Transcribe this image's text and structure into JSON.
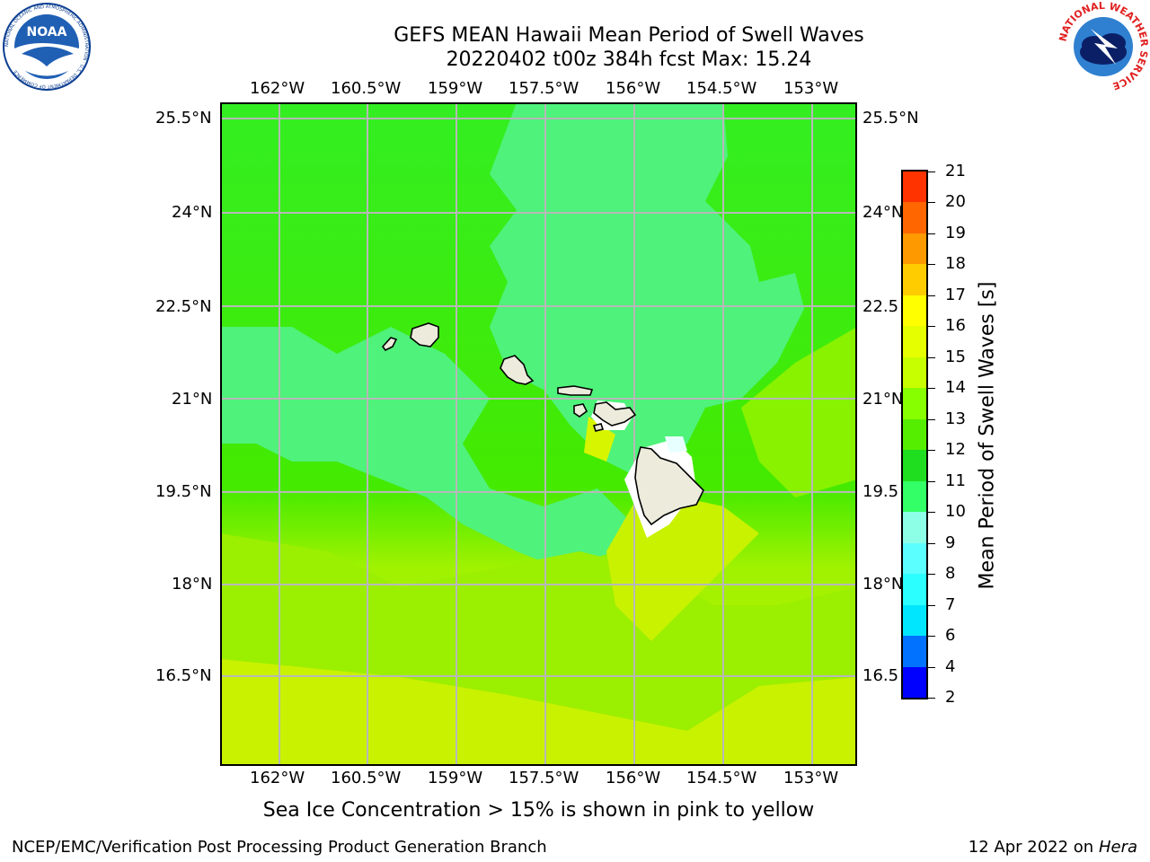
{
  "header": {
    "title_line1": "GEFS MEAN Hawaii Mean Period of Swell Waves",
    "title_line2": "20220402 t00z 384h fcst   Max: 15.24"
  },
  "logos": {
    "left": {
      "name": "noaa-logo",
      "text": "NOAA",
      "ring_text": "NATIONAL OCEANIC AND ATMOSPHERIC ADMINISTRATION · U.S. DEPARTMENT OF COMMERCE"
    },
    "right": {
      "name": "nws-logo",
      "ring_text": "NATIONAL WEATHER SERVICE"
    }
  },
  "map": {
    "lon_ticks": [
      "162°W",
      "160.5°W",
      "159°W",
      "157.5°W",
      "156°W",
      "154.5°W",
      "153°W"
    ],
    "lat_ticks_left": [
      "25.5°N",
      "24°N",
      "22.5°N",
      "21°N",
      "19.5°N",
      "18°N",
      "16.5°N"
    ],
    "lat_ticks_right": [
      "25.5°N",
      "24°N",
      "22.5",
      "21°N",
      "19.5",
      "18°N",
      "16.5"
    ],
    "lon_range": [
      -163,
      -152.5
    ],
    "lat_range": [
      15,
      25.8
    ],
    "islands": [
      "Kauai",
      "Niihau",
      "Oahu",
      "Molokai",
      "Lanai",
      "Maui",
      "Kahoolawe",
      "Hawaii"
    ]
  },
  "colorbar": {
    "label": "Mean Period of Swell Waves [s]",
    "levels": [
      "2",
      "4",
      "6",
      "7",
      "8",
      "9",
      "10",
      "11",
      "12",
      "13",
      "14",
      "15",
      "16",
      "17",
      "18",
      "19",
      "20",
      "21"
    ],
    "colors": [
      "#0000ff",
      "#0072ff",
      "#00e6ff",
      "#2cffff",
      "#5cffff",
      "#8cffe6",
      "#33ff66",
      "#1fdd1f",
      "#55ee00",
      "#88ff00",
      "#c8ff00",
      "#e6ff00",
      "#ffff00",
      "#ffcc00",
      "#ff9900",
      "#ff6600",
      "#ff3300",
      "#ff0000"
    ]
  },
  "note": "Sea Ice Concentration > 15% is shown in pink to yellow",
  "footer": {
    "left": "NCEP/EMC/Verification Post Processing Product Generation Branch",
    "right_date": "12 Apr 2022 on",
    "right_host": "Hera"
  }
}
